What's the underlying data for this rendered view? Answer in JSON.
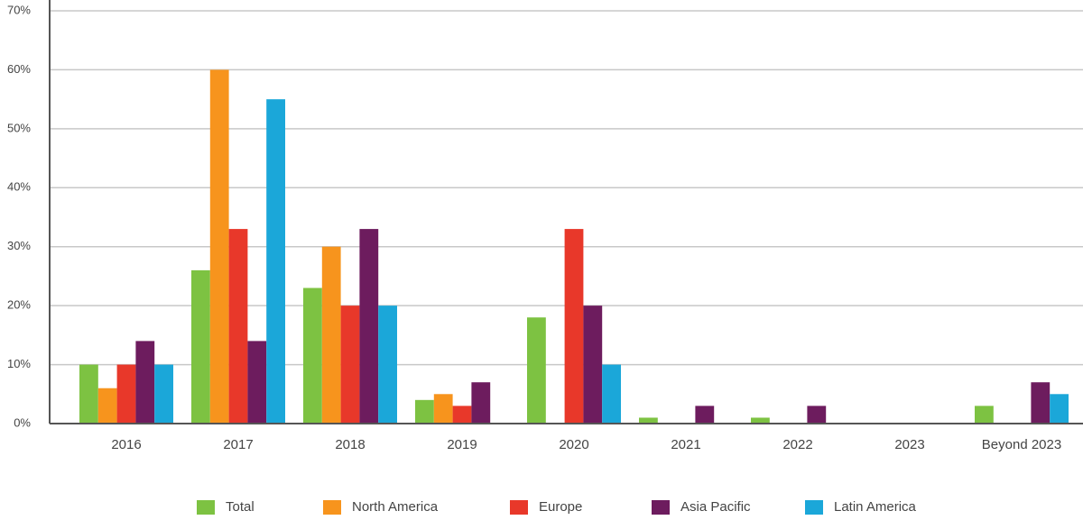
{
  "chart_data": {
    "type": "bar",
    "categories": [
      "2016",
      "2017",
      "2018",
      "2019",
      "2020",
      "2021",
      "2022",
      "2023",
      "Beyond 2023"
    ],
    "series": [
      {
        "name": "Total",
        "color": "#7dc242",
        "values": [
          10,
          26,
          23,
          4,
          18,
          1,
          1,
          0,
          3
        ]
      },
      {
        "name": "North America",
        "color": "#f7941d",
        "values": [
          6,
          60,
          30,
          5,
          0,
          0,
          0,
          0,
          0
        ]
      },
      {
        "name": "Europe",
        "color": "#e8382a",
        "values": [
          10,
          33,
          20,
          3,
          33,
          0,
          0,
          0,
          0
        ]
      },
      {
        "name": "Asia Pacific",
        "color": "#6d1c5e",
        "values": [
          14,
          14,
          33,
          7,
          20,
          3,
          3,
          0,
          7
        ]
      },
      {
        "name": "Latin America",
        "color": "#1ba7d9",
        "values": [
          10,
          55,
          20,
          0,
          10,
          0,
          0,
          0,
          5
        ]
      }
    ],
    "ylim": [
      0,
      70
    ],
    "yticks": [
      {
        "value": 0,
        "label": "0%"
      },
      {
        "value": 10,
        "label": "10%"
      },
      {
        "value": 20,
        "label": "20%"
      },
      {
        "value": 30,
        "label": "30%"
      },
      {
        "value": 40,
        "label": "40%"
      },
      {
        "value": 50,
        "label": "50%"
      },
      {
        "value": 60,
        "label": "60%"
      },
      {
        "value": 70,
        "label": "70%"
      }
    ],
    "grid": true,
    "legend": "bottom"
  }
}
